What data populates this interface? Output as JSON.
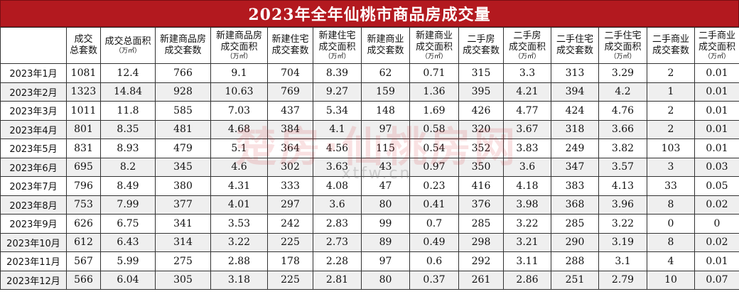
{
  "title": "2023年全年仙桃市商品房成交量",
  "watermark": {
    "main": "楚房·仙桃房网",
    "sub": "xtfw.cn"
  },
  "headers": [
    {
      "l1": "",
      "l2": "",
      "unit": ""
    },
    {
      "l1": "成交",
      "l2": "总套数",
      "unit": ""
    },
    {
      "l1": "成交总面积",
      "l2": "",
      "unit": "（万㎡）"
    },
    {
      "l1": "新建商品房",
      "l2": "成交套数",
      "unit": ""
    },
    {
      "l1": "新建商品房",
      "l2": "成交面积",
      "unit": "（万㎡）"
    },
    {
      "l1": "新建住宅",
      "l2": "成交套数",
      "unit": ""
    },
    {
      "l1": "新建住宅",
      "l2": "成交面积",
      "unit": "（万㎡）"
    },
    {
      "l1": "新建商业",
      "l2": "成交套数",
      "unit": ""
    },
    {
      "l1": "新建商业",
      "l2": "成交面积",
      "unit": "（万㎡）"
    },
    {
      "l1": "二手房",
      "l2": "成交套数",
      "unit": ""
    },
    {
      "l1": "二手房",
      "l2": "成交面积",
      "unit": "（万㎡）"
    },
    {
      "l1": "二手住宅",
      "l2": "成交套数",
      "unit": ""
    },
    {
      "l1": "二手住宅",
      "l2": "成交面积",
      "unit": "（万㎡）"
    },
    {
      "l1": "二手商业",
      "l2": "成交套数",
      "unit": ""
    },
    {
      "l1": "二手商业",
      "l2": "成交面积",
      "unit": "（万㎡）"
    }
  ],
  "rows": [
    [
      "2023年1月",
      "1081",
      "12.4",
      "766",
      "9.1",
      "704",
      "8.39",
      "62",
      "0.71",
      "315",
      "3.3",
      "313",
      "3.29",
      "2",
      "0.01"
    ],
    [
      "2023年2月",
      "1323",
      "14.84",
      "928",
      "10.63",
      "769",
      "9.27",
      "159",
      "1.36",
      "395",
      "4.21",
      "394",
      "4.2",
      "1",
      "0.01"
    ],
    [
      "2023年3月",
      "1011",
      "11.8",
      "585",
      "7.03",
      "437",
      "5.34",
      "148",
      "1.69",
      "426",
      "4.77",
      "424",
      "4.76",
      "2",
      "0.01"
    ],
    [
      "2023年4月",
      "801",
      "8.35",
      "481",
      "4.68",
      "384",
      "4.1",
      "97",
      "0.58",
      "320",
      "3.67",
      "318",
      "3.66",
      "2",
      "0.01"
    ],
    [
      "2023年5月",
      "831",
      "8.93",
      "479",
      "5.1",
      "364",
      "4.56",
      "115",
      "0.54",
      "352",
      "3.83",
      "249",
      "3.82",
      "103",
      "0.01"
    ],
    [
      "2023年6月",
      "695",
      "8.2",
      "345",
      "4.6",
      "302",
      "3.63",
      "43",
      "0.97",
      "350",
      "3.6",
      "347",
      "3.57",
      "3",
      "0.03"
    ],
    [
      "2023年7月",
      "796",
      "8.49",
      "380",
      "4.31",
      "333",
      "4.08",
      "47",
      "0.23",
      "416",
      "4.18",
      "383",
      "4.13",
      "33",
      "0.05"
    ],
    [
      "2023年8月",
      "753",
      "7.99",
      "377",
      "4.01",
      "297",
      "3.6",
      "80",
      "0.41",
      "376",
      "3.98",
      "368",
      "3.96",
      "8",
      "0.02"
    ],
    [
      "2023年9月",
      "626",
      "6.75",
      "341",
      "3.53",
      "242",
      "2.83",
      "99",
      "0.7",
      "285",
      "3.22",
      "285",
      "3.22",
      "0",
      "0"
    ],
    [
      "2023年10月",
      "612",
      "6.43",
      "314",
      "3.22",
      "225",
      "2.73",
      "89",
      "0.49",
      "298",
      "3.21",
      "290",
      "3.19",
      "8",
      "0.02"
    ],
    [
      "2023年11月",
      "567",
      "5.99",
      "275",
      "2.88",
      "178",
      "2.28",
      "97",
      "0.6",
      "292",
      "3.11",
      "288",
      "3.1",
      "4",
      "0.01"
    ],
    [
      "2023年12月",
      "566",
      "6.04",
      "305",
      "3.18",
      "225",
      "2.81",
      "80",
      "0.37",
      "261",
      "2.86",
      "251",
      "2.79",
      "10",
      "0.07"
    ]
  ]
}
